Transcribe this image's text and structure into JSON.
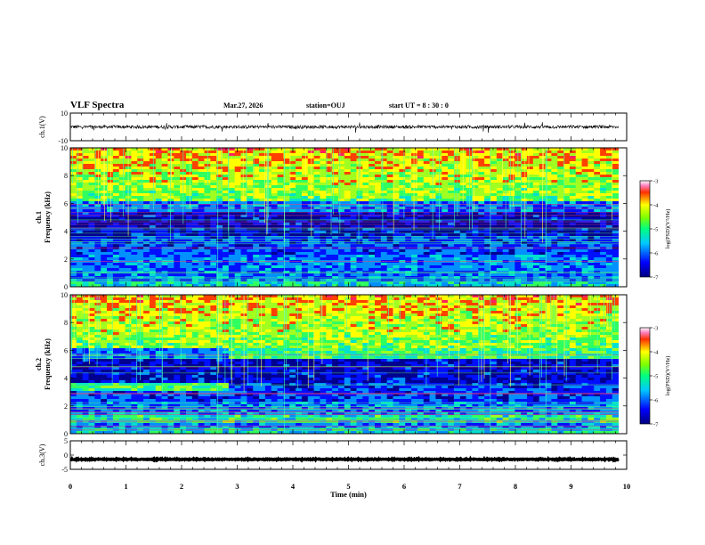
{
  "header": {
    "title": "VLF Spectra",
    "date": "Mar.27, 2026",
    "station": "station=OUJ",
    "start": "start  UT =   8 : 30 : 0"
  },
  "chart_data": [
    {
      "type": "line",
      "name": "ch1-waveform",
      "ylabel": "ch.1(V)",
      "ylim": [
        -10,
        10
      ],
      "yticks": [
        "10",
        "-10"
      ],
      "xlim": [
        0,
        10
      ],
      "baseline": 0,
      "noise_amplitude": 1.2
    },
    {
      "type": "heatmap",
      "name": "ch1-spectrogram",
      "ylabel_line1": "ch.1",
      "ylabel_line2": "Frequency (kHz)",
      "ylim": [
        0,
        10
      ],
      "yticks": [
        "0",
        "2",
        "4",
        "6",
        "8",
        "10"
      ],
      "xlim": [
        0,
        10
      ],
      "data_end_min": 9.85,
      "colorbar": {
        "label": "log(PSD)(V²/Hz)",
        "ticks": [
          "-3",
          "-4",
          "-5",
          "-6",
          "-7"
        ],
        "range": [
          -7,
          -3
        ]
      }
    },
    {
      "type": "heatmap",
      "name": "ch2-spectrogram",
      "ylabel_line1": "ch.2",
      "ylabel_line2": "Frequency (kHz)",
      "ylim": [
        0,
        10
      ],
      "yticks": [
        "0",
        "2",
        "4",
        "6",
        "8",
        "10"
      ],
      "xlim": [
        0,
        10
      ],
      "data_end_min": 9.85,
      "colorbar": {
        "label": "log(PSD)(V²/Hz)",
        "ticks": [
          "-3",
          "-4",
          "-5",
          "-6",
          "-7"
        ],
        "range": [
          -7,
          -3
        ]
      }
    },
    {
      "type": "line",
      "name": "ch3-waveform",
      "ylabel": "ch.3(V)",
      "ylim": [
        -5,
        5
      ],
      "yticks": [
        "5",
        "0",
        "-5"
      ],
      "xlim": [
        0,
        10
      ],
      "baseline": -1.5,
      "noise_amplitude": 0.15
    }
  ],
  "xaxis": {
    "label": "Time (min)",
    "ticks": [
      "0",
      "1",
      "2",
      "3",
      "4",
      "5",
      "6",
      "7",
      "8",
      "9",
      "10"
    ]
  }
}
